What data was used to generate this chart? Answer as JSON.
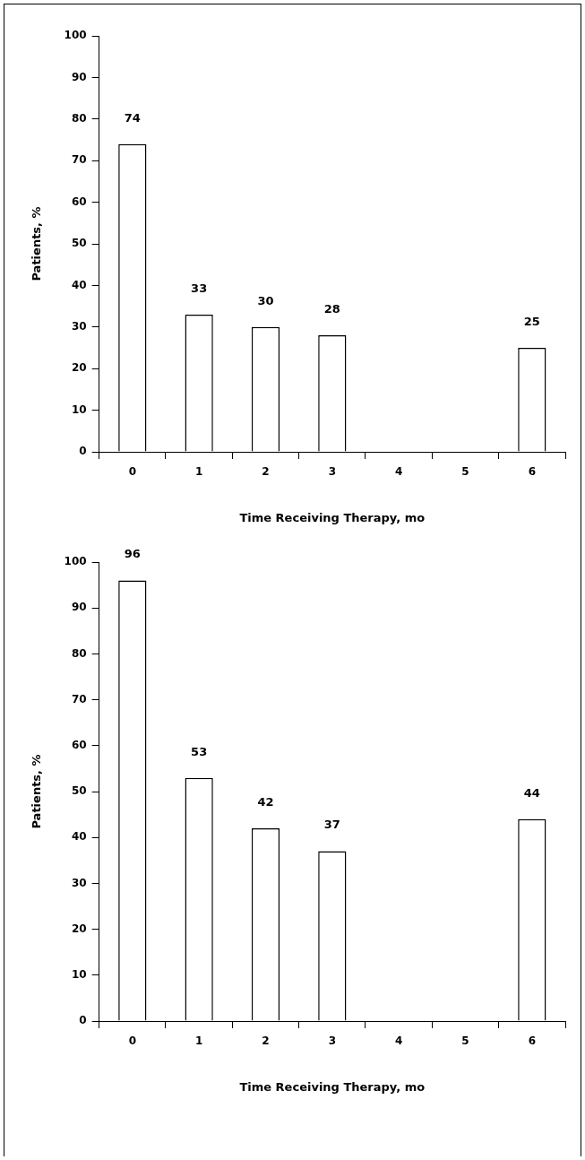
{
  "chart_data": [
    {
      "type": "bar",
      "categories": [
        "0",
        "1",
        "2",
        "3",
        "4",
        "5",
        "6"
      ],
      "values": [
        74,
        33,
        30,
        28,
        null,
        null,
        25
      ],
      "color": "#ffffff",
      "ylim": [
        0,
        100
      ],
      "yticks": [
        0,
        10,
        20,
        30,
        40,
        50,
        60,
        70,
        80,
        90,
        100
      ],
      "xlabel": "Time Receiving Therapy, mo",
      "ylabel": "Patients, %",
      "data_labels": true,
      "grid": false,
      "legend": false
    },
    {
      "type": "bar",
      "categories": [
        "0",
        "1",
        "2",
        "3",
        "4",
        "5",
        "6"
      ],
      "values": [
        96,
        53,
        42,
        37,
        null,
        null,
        44
      ],
      "color": "#ffffff",
      "ylim": [
        0,
        100
      ],
      "yticks": [
        0,
        10,
        20,
        30,
        40,
        50,
        60,
        70,
        80,
        90,
        100
      ],
      "xlabel": "Time Receiving Therapy, mo",
      "ylabel": "Patients, %",
      "data_labels": true,
      "grid": false,
      "legend": false
    }
  ]
}
